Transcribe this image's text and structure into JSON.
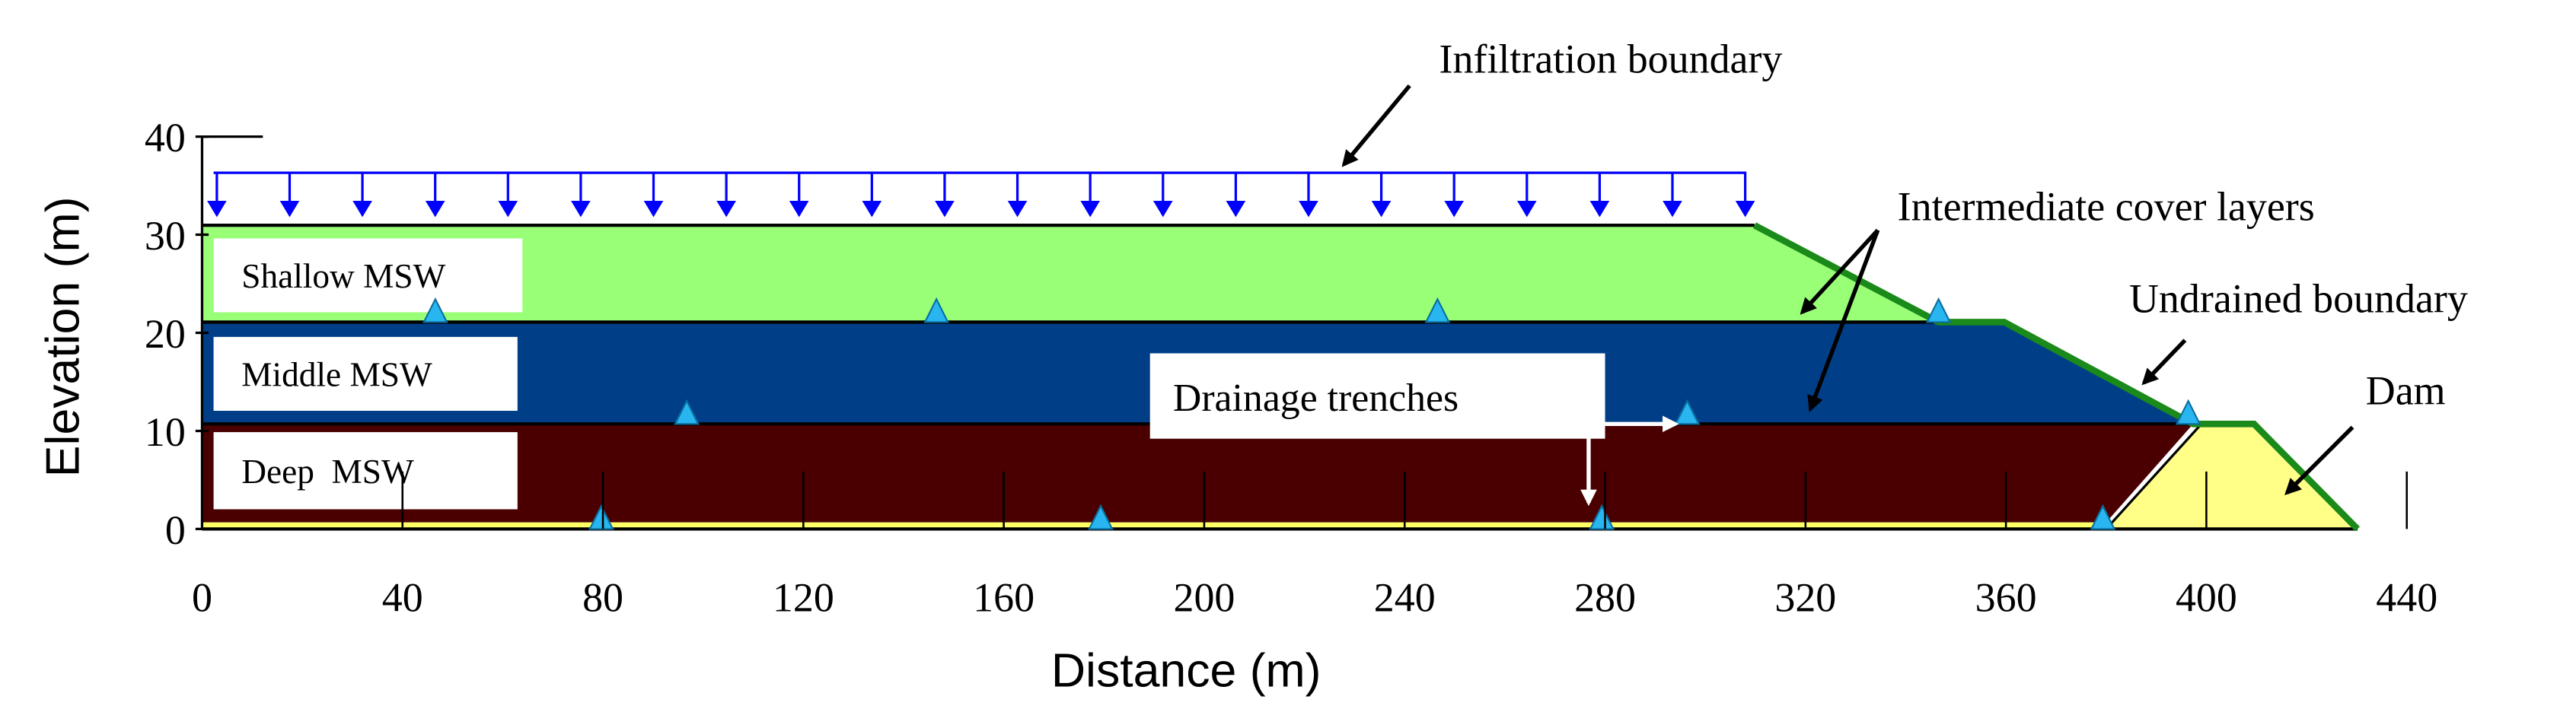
{
  "diagram": {
    "x_axis": {
      "label": "Distance (m)",
      "lim": [
        0,
        440
      ],
      "ticks": [
        0,
        40,
        80,
        120,
        160,
        200,
        240,
        280,
        320,
        360,
        400,
        440
      ]
    },
    "y_axis": {
      "label": "Elevation (m)",
      "lim": [
        0,
        40
      ],
      "ticks": [
        0,
        10,
        20,
        30,
        40
      ]
    },
    "layers": [
      "Shallow MSW",
      "Middle MSW",
      "Deep  MSW"
    ],
    "annotations": {
      "infiltration": "Infiltration boundary",
      "cover": "Intermediate cover layers",
      "undrained": "Undrained boundary",
      "dam": "Dam",
      "drainage": "Drainage trenches"
    }
  }
}
